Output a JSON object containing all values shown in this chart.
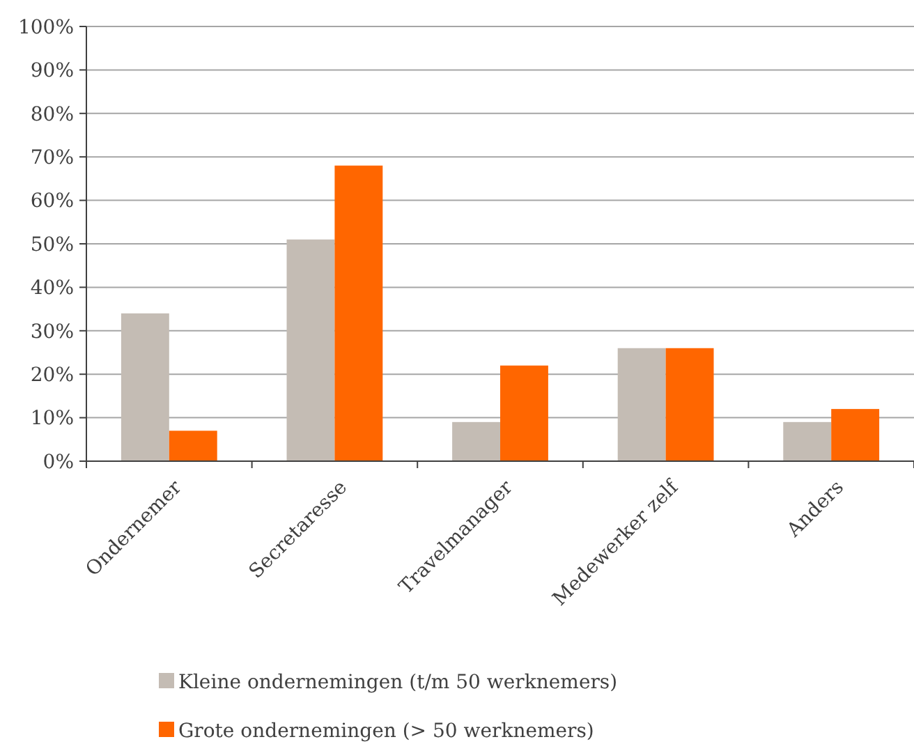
{
  "chart_data": {
    "type": "bar",
    "categories": [
      "Ondernemer",
      "Secretaresse",
      "Travelmanager",
      "Medewerker zelf",
      "Anders"
    ],
    "series": [
      {
        "name": "Kleine ondernemingen (t/m 50 werknemers)",
        "color": "#c4bcb4",
        "values": [
          34,
          51,
          9,
          26,
          9
        ]
      },
      {
        "name": "Grote ondernemingen (> 50 werknemers)",
        "color": "#ff6600",
        "values": [
          7,
          68,
          22,
          26,
          12
        ]
      }
    ],
    "ylim": [
      0,
      100
    ],
    "yticks": [
      {
        "value": 0,
        "label": "0%"
      },
      {
        "value": 10,
        "label": "10%"
      },
      {
        "value": 20,
        "label": "20%"
      },
      {
        "value": 30,
        "label": "30%"
      },
      {
        "value": 40,
        "label": "40%"
      },
      {
        "value": 50,
        "label": "50%"
      },
      {
        "value": 60,
        "label": "60%"
      },
      {
        "value": 70,
        "label": "70%"
      },
      {
        "value": 80,
        "label": "80%"
      },
      {
        "value": 90,
        "label": "90%"
      },
      {
        "value": 100,
        "label": "100%"
      }
    ],
    "grid": "y",
    "legend": "bottom"
  }
}
